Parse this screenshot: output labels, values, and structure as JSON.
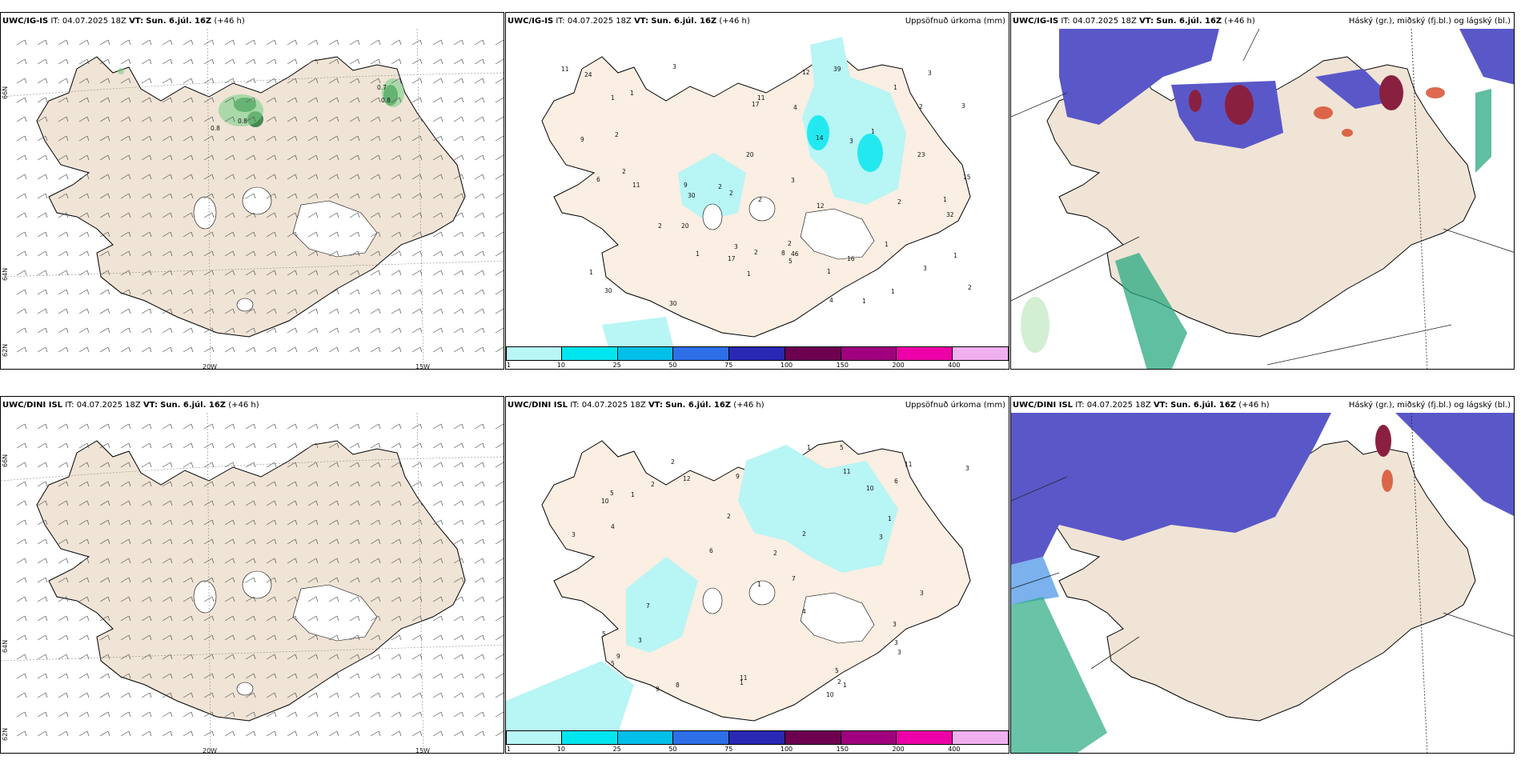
{
  "panels": [
    {
      "model": "UWC/IG-IS",
      "it": "04.07.2025 18Z",
      "vt": "Sun. 6.júl. 16Z",
      "lead": "(+46 h)",
      "right_title": ""
    },
    {
      "model": "UWC/IG-IS",
      "it": "04.07.2025 18Z",
      "vt": "Sun. 6.júl. 16Z",
      "lead": "(+46 h)",
      "right_title": "Uppsöfnuð úrkoma (mm)"
    },
    {
      "model": "UWC/IG-IS",
      "it": "04.07.2025 18Z",
      "vt": "Sun. 6.júl. 16Z",
      "lead": "(+46 h)",
      "right_title": "Háský (gr.), miðský (fj.bl.) og lágský (bl.)"
    },
    {
      "model": "UWC/DINI ISL",
      "it": "04.07.2025 18Z",
      "vt": "Sun. 6.júl. 16Z",
      "lead": "(+46 h)",
      "right_title": ""
    },
    {
      "model": "UWC/DINI ISL",
      "it": "04.07.2025 18Z",
      "vt": "Sun. 6.júl. 16Z",
      "lead": "(+46 h)",
      "right_title": "Uppsöfnuð úrkoma (mm)"
    },
    {
      "model": "UWC/DINI ISL",
      "it": "04.07.2025 18Z",
      "vt": "Sun. 6.júl. 16Z",
      "lead": "(+46 h)",
      "right_title": "Háský (gr.), miðský (fj.bl.) og lágský (bl.)"
    }
  ],
  "labels": {
    "it": "IT:",
    "vt": "VT:"
  },
  "grid_labels": {
    "lon_20": "20W",
    "lon_15": "15W",
    "lat_66": "66N",
    "lat_64": "64N",
    "lat_62": "62N"
  },
  "wind_values": {
    "a": "0.7",
    "b": "0.8",
    "c": "0.8",
    "d": "0.8"
  },
  "colorbar": {
    "ticks": [
      "1",
      "10",
      "25",
      "50",
      "75",
      "100",
      "150",
      "200",
      "400"
    ],
    "colors": [
      "#b8f5f5",
      "#00e6f0",
      "#00bfe8",
      "#2e6fe8",
      "#2828b4",
      "#6e0050",
      "#a0007e",
      "#ee00a8",
      "#f0b0f0"
    ]
  },
  "precip_top": [
    "3",
    "1",
    "2",
    "12",
    "16",
    "3",
    "1",
    "2",
    "1",
    "1",
    "2",
    "9",
    "39",
    "8",
    "3",
    "30",
    "17",
    "2",
    "1",
    "3",
    "3",
    "4",
    "20",
    "24",
    "17",
    "23",
    "11",
    "32",
    "30",
    "5",
    "46",
    "15",
    "14",
    "12",
    "11",
    "11",
    "20",
    "30",
    "9",
    "2",
    "4",
    "6",
    "1",
    "2",
    "1",
    "3",
    "2",
    "2",
    "1",
    "1",
    "2",
    "1",
    "3",
    "2",
    "2",
    "1",
    "1",
    "1"
  ],
  "precip_bot": [
    "2",
    "1",
    "2",
    "10",
    "6",
    "5",
    "3",
    "1",
    "11",
    "10",
    "9",
    "5",
    "7",
    "4",
    "11",
    "7",
    "3",
    "12",
    "5",
    "2",
    "1",
    "9",
    "6",
    "5",
    "2",
    "3",
    "11",
    "9",
    "4",
    "1",
    "1",
    "2",
    "3",
    "3",
    "5",
    "8",
    "10",
    "1",
    "3",
    "3",
    "2",
    "3"
  ],
  "colors": {
    "land": "#f0e4d6",
    "land_precip": "#fbeee2",
    "sea": "#ffffff",
    "glacier": "#ffffff",
    "cloud_mid": "#5a58c8",
    "cloud_low": "#5a9ee8",
    "cloud_high": "#2aaa80",
    "cloud_hot": "#8a2040"
  }
}
